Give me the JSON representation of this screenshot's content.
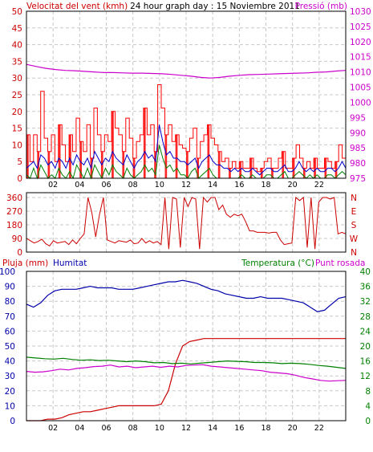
{
  "header": {
    "title": "24 hour graph day : 15 Noviembre 2011",
    "left_label": "Velocitat del vent (kmh)",
    "right_label": "Pressió (mb)"
  },
  "colors": {
    "wind": "#ff0000",
    "gust_fill": "#ff0000",
    "avg_wind": "#0000cc",
    "low_wind": "#008000",
    "pressure": "#cc00cc",
    "direction": "#cc0000",
    "rain": "#cc0000",
    "humidity": "#0000aa",
    "temperature": "#008000",
    "dewpoint": "#cc00cc",
    "grid": "#c8c8c8",
    "axis_text_blue": "#0000aa",
    "axis_text_green": "#008000"
  },
  "chart_data": [
    {
      "type": "bar",
      "name": "wind-pressure",
      "y_ticks": [
        "0",
        "5",
        "10",
        "15",
        "20",
        "25",
        "30",
        "35",
        "40",
        "45",
        "50"
      ],
      "y2_ticks": [
        "975",
        "980",
        "985",
        "990",
        "995",
        "1000",
        "1005",
        "1010",
        "1015",
        "1020",
        "1025",
        "1030"
      ],
      "x_ticks": [
        "02",
        "04",
        "06",
        "08",
        "10",
        "12",
        "14",
        "16",
        "18",
        "20",
        "22"
      ],
      "ylim": [
        0,
        50
      ],
      "y2lim": [
        975,
        1030
      ],
      "gust_kmh": [
        13,
        5,
        13,
        8,
        26,
        12,
        8,
        13,
        5,
        16,
        10,
        5,
        13,
        8,
        18,
        11,
        8,
        16,
        6,
        21,
        13,
        8,
        13,
        11,
        20,
        15,
        13,
        8,
        18,
        12,
        6,
        11,
        13,
        21,
        13,
        16,
        8,
        28,
        21,
        13,
        16,
        11,
        13,
        10,
        9,
        8,
        12,
        15,
        6,
        11,
        13,
        16,
        12,
        10,
        8,
        5,
        6,
        3,
        5,
        3,
        5,
        3,
        3,
        6,
        3,
        2,
        3,
        5,
        6,
        3,
        3,
        6,
        8,
        3,
        3,
        6,
        10,
        6,
        3,
        5,
        3,
        6,
        3,
        3,
        6,
        5,
        3,
        5,
        10,
        6
      ],
      "avg_wind_kmh": [
        3,
        4,
        5,
        3,
        7,
        6,
        4,
        5,
        3,
        6,
        5,
        3,
        6,
        4,
        7,
        5,
        4,
        6,
        3,
        8,
        6,
        4,
        6,
        5,
        8,
        6,
        5,
        4,
        7,
        5,
        3,
        5,
        6,
        8,
        6,
        7,
        5,
        16,
        11,
        7,
        8,
        6,
        6,
        5,
        5,
        4,
        5,
        6,
        3,
        5,
        6,
        7,
        5,
        4,
        4,
        3,
        3,
        2,
        3,
        2,
        3,
        2,
        2,
        3,
        2,
        1,
        2,
        3,
        3,
        2,
        2,
        3,
        4,
        2,
        2,
        3,
        5,
        3,
        2,
        3,
        2,
        3,
        2,
        2,
        3,
        3,
        2,
        3,
        5,
        3
      ],
      "low_wind_kmh": [
        1,
        0,
        3,
        0,
        4,
        2,
        0,
        1,
        0,
        3,
        1,
        0,
        2,
        0,
        4,
        2,
        0,
        3,
        0,
        4,
        2,
        0,
        3,
        1,
        4,
        2,
        1,
        0,
        3,
        1,
        0,
        1,
        2,
        4,
        2,
        3,
        1,
        10,
        6,
        3,
        4,
        2,
        3,
        1,
        1,
        0,
        2,
        3,
        0,
        1,
        2,
        3,
        1,
        0,
        0,
        0,
        0,
        0,
        0,
        0,
        1,
        0,
        0,
        1,
        0,
        0,
        0,
        1,
        1,
        0,
        0,
        1,
        2,
        0,
        0,
        1,
        2,
        1,
        0,
        1,
        0,
        1,
        0,
        0,
        1,
        1,
        0,
        1,
        2,
        1
      ],
      "pressure_mb": [
        1012.5,
        1011.8,
        1011.2,
        1010.8,
        1010.5,
        1010.4,
        1010.2,
        1010.0,
        1009.8,
        1009.8,
        1009.7,
        1009.6,
        1009.6,
        1009.5,
        1009.4,
        1009.2,
        1008.9,
        1008.6,
        1008.2,
        1008.0,
        1008.2,
        1008.6,
        1008.9,
        1009.1,
        1009.2,
        1009.3,
        1009.4,
        1009.5,
        1009.6,
        1009.7,
        1009.9,
        1010.0,
        1010.3,
        1010.5
      ]
    },
    {
      "type": "line",
      "name": "wind-direction",
      "y_ticks": [
        "0",
        "90",
        "180",
        "270",
        "360"
      ],
      "right_ticks": [
        "N",
        "W",
        "S",
        "E",
        "N"
      ],
      "ylim": [
        0,
        360
      ],
      "x_ticks": [
        "02",
        "04",
        "06",
        "08",
        "10",
        "12",
        "14",
        "16",
        "18",
        "20",
        "22"
      ],
      "direction_deg": [
        90,
        75,
        60,
        70,
        85,
        55,
        40,
        75,
        60,
        65,
        70,
        50,
        80,
        55,
        90,
        120,
        360,
        260,
        100,
        250,
        360,
        80,
        70,
        60,
        75,
        70,
        65,
        80,
        55,
        60,
        90,
        60,
        75,
        60,
        70,
        50,
        360,
        20,
        360,
        350,
        30,
        360,
        300,
        360,
        350,
        20,
        360,
        330,
        360,
        360,
        280,
        310,
        250,
        230,
        250,
        240,
        250,
        200,
        140,
        140,
        130,
        130,
        130,
        125,
        130,
        130,
        80,
        50,
        55,
        60,
        360,
        340,
        360,
        30,
        360,
        20,
        330,
        360,
        360,
        350,
        360,
        120,
        130,
        120
      ]
    },
    {
      "type": "line",
      "name": "rain-humidity-temperature",
      "left_label": "Pluja (mm)",
      "left2_label": "Humitat",
      "right_label": "Temperatura (°C)",
      "right2_label": "Punt rosada",
      "y_ticks": [
        "0",
        "10",
        "20",
        "30",
        "40",
        "50",
        "60",
        "70",
        "80",
        "90",
        "100"
      ],
      "y2_ticks": [
        "0",
        "4",
        "8",
        "12",
        "16",
        "20",
        "24",
        "28",
        "32",
        "36",
        "40"
      ],
      "x_ticks": [
        "02",
        "04",
        "06",
        "08",
        "10",
        "12",
        "14",
        "16",
        "18",
        "20",
        "22"
      ],
      "ylim": [
        0,
        100
      ],
      "y2lim": [
        0,
        40
      ],
      "humidity_pct": [
        78,
        76,
        79,
        84,
        87,
        88,
        88,
        88,
        89,
        90,
        89,
        89,
        89,
        88,
        88,
        88,
        89,
        90,
        91,
        92,
        93,
        93,
        94,
        93,
        92,
        90,
        88,
        87,
        85,
        84,
        83,
        82,
        82,
        83,
        82,
        82,
        82,
        81,
        80,
        79,
        76,
        73,
        74,
        78,
        82,
        83
      ],
      "rain_mm": [
        0,
        0,
        0,
        1,
        1,
        2,
        4,
        5,
        6,
        6,
        7,
        8,
        9,
        10,
        10,
        10,
        10,
        10,
        10,
        11,
        20,
        38,
        50,
        53,
        54,
        55,
        55,
        55,
        55,
        55,
        55,
        55,
        55,
        55,
        55,
        55,
        55,
        55,
        55,
        55,
        55,
        55,
        55,
        55,
        55,
        55
      ],
      "temperature_c": [
        17.0,
        16.8,
        16.6,
        16.5,
        16.7,
        16.4,
        16.2,
        16.3,
        16.1,
        16.2,
        16.0,
        15.8,
        16.0,
        15.8,
        15.5,
        15.6,
        15.3,
        15.4,
        15.2,
        15.4,
        15.6,
        15.8,
        16.0,
        15.9,
        15.8,
        15.6,
        15.6,
        15.5,
        15.3,
        15.4,
        15.3,
        15.1,
        14.8,
        14.6,
        14.3,
        14.0
      ],
      "dewpoint_c": [
        13.2,
        13.0,
        13.1,
        13.4,
        13.8,
        13.6,
        14.0,
        14.2,
        14.5,
        14.6,
        14.9,
        14.4,
        14.6,
        14.2,
        14.4,
        14.6,
        14.3,
        14.6,
        14.4,
        14.8,
        14.9,
        15.0,
        14.6,
        14.4,
        14.2,
        14.0,
        13.8,
        13.6,
        13.4,
        13.0,
        12.8,
        12.6,
        12.2,
        11.6,
        11.2,
        10.8,
        10.6,
        10.7,
        10.8
      ]
    }
  ]
}
